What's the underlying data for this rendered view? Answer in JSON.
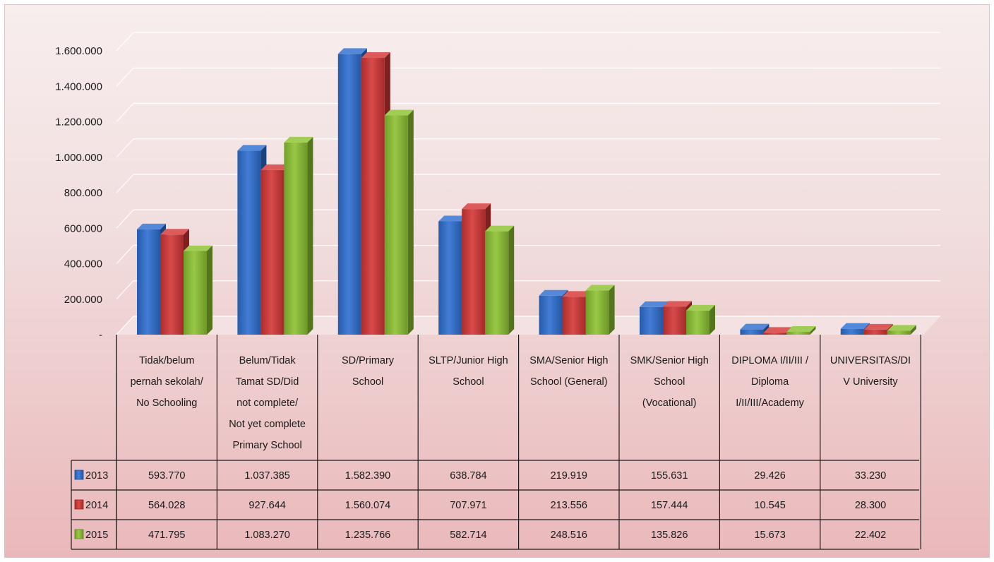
{
  "chart_data": {
    "type": "bar",
    "style": "3d clustered columns with data table",
    "title": "",
    "xlabel": "",
    "ylabel": "",
    "ylim": [
      0,
      1600000
    ],
    "y_ticks": [
      "-",
      "200.000",
      "400.000",
      "600.000",
      "800.000",
      "1.000.000",
      "1.200.000",
      "1.400.000",
      "1.600.000"
    ],
    "grid": true,
    "legend_placement": "left of data table rows",
    "categories": [
      [
        "Tidak/belum",
        "pernah sekolah/",
        "No Schooling"
      ],
      [
        "Belum/Tidak",
        "Tamat SD/Did",
        "not complete/",
        "Not yet complete",
        "Primary School"
      ],
      [
        "SD/Primary",
        "School"
      ],
      [
        "SLTP/Junior High",
        "School"
      ],
      [
        "SMA/Senior High",
        "School (General)"
      ],
      [
        "SMK/Senior High",
        "School",
        "(Vocational)"
      ],
      [
        "DIPLOMA I/II/III /",
        "Diploma",
        "I/II/III/Academy"
      ],
      [
        "UNIVERSITAS/DI",
        "V University"
      ]
    ],
    "series": [
      {
        "name": "2013",
        "color": "#2e6fd1",
        "values": [
          593770,
          1037385,
          1582390,
          638784,
          219919,
          155631,
          29426,
          33230
        ],
        "labels": [
          "593.770",
          "1.037.385",
          "1.582.390",
          "638.784",
          "219.919",
          "155.631",
          "29.426",
          "33.230"
        ]
      },
      {
        "name": "2014",
        "color": "#d43636",
        "values": [
          564028,
          927644,
          1560074,
          707971,
          213556,
          157444,
          10545,
          28300
        ],
        "labels": [
          "564.028",
          "927.644",
          "1.560.074",
          "707.971",
          "213.556",
          "157.444",
          "10.545",
          "28.300"
        ]
      },
      {
        "name": "2015",
        "color": "#8cc232",
        "values": [
          471795,
          1083270,
          1235766,
          582714,
          248516,
          135826,
          15673,
          22402
        ],
        "labels": [
          "471.795",
          "1.083.270",
          "1.235.766",
          "582.714",
          "248.516",
          "135.826",
          "15.673",
          "22.402"
        ]
      }
    ]
  }
}
